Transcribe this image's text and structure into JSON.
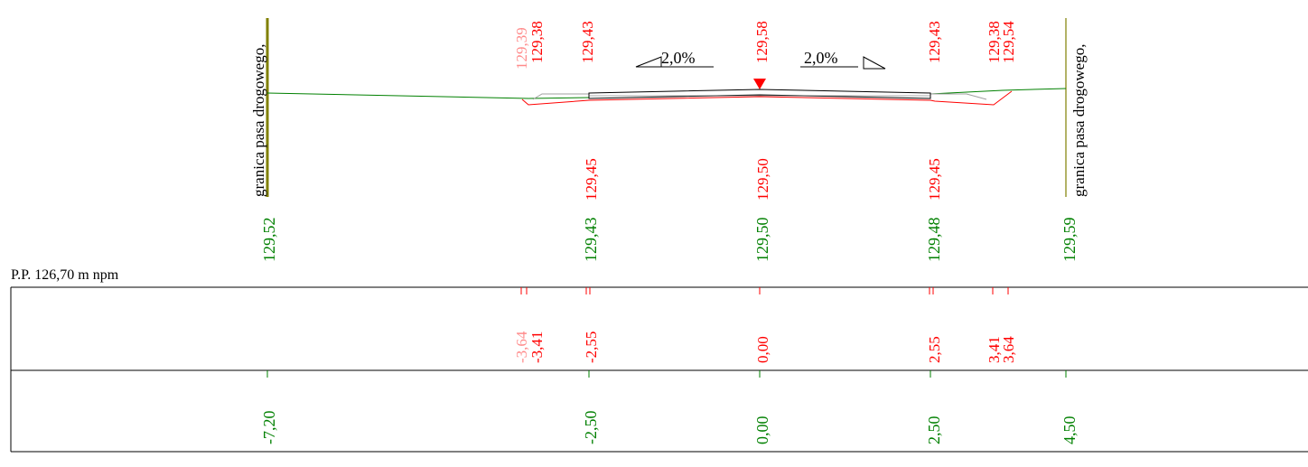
{
  "datum": "P.P. 126,70 m npm",
  "boundary_label": "granica pasa drogowego,",
  "slope_left": "2,0%",
  "slope_right": "2,0%",
  "top_labels": [
    "129,38",
    "129,43",
    "129,58",
    "129,43",
    "129,38",
    "129,54"
  ],
  "top_label_partial": "129,39",
  "design_elev": [
    "129,45",
    "129,50",
    "129,45"
  ],
  "terrain_elev": [
    "129,52",
    "129,43",
    "129,50",
    "129,48",
    "129,59"
  ],
  "design_dist": [
    "-3,41",
    "-2,55",
    "0,00",
    "2,55",
    "3,41",
    "3,64"
  ],
  "design_dist_partial": "-3,64",
  "terrain_dist": [
    "-7,20",
    "-2,50",
    "0,00",
    "2,50",
    "4,50"
  ],
  "colors": {
    "design": "#ff0000",
    "terrain": "#008000",
    "structure": "#000000",
    "verge": "#808000"
  }
}
